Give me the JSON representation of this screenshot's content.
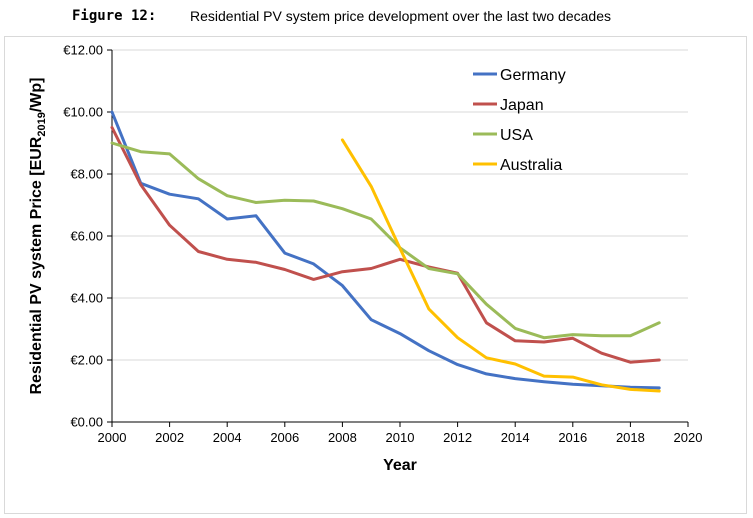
{
  "figure": {
    "label": "Figure 12:",
    "title": "Residential PV system price development over the last two decades"
  },
  "chart_data": {
    "type": "line",
    "title": "Residential PV system price development over the last two decades",
    "xlabel": "Year",
    "ylabel_main": "Residential PV system Price [EUR",
    "ylabel_sub": "2019",
    "ylabel_end": "/Wp]",
    "xlim": [
      2000,
      2020
    ],
    "ylim": [
      0,
      12
    ],
    "x_ticks": [
      2000,
      2002,
      2004,
      2006,
      2008,
      2010,
      2012,
      2014,
      2016,
      2018,
      2020
    ],
    "y_ticks": [
      0,
      2,
      4,
      6,
      8,
      10,
      12
    ],
    "y_tick_labels": [
      "€0.00",
      "€2.00",
      "€4.00",
      "€6.00",
      "€8.00",
      "€10.00",
      "€12.00"
    ],
    "grid": "horizontal",
    "legend_position": "top-right",
    "series": [
      {
        "name": "Germany",
        "color": "#4472C4",
        "x": [
          2000,
          2001,
          2002,
          2003,
          2004,
          2005,
          2006,
          2007,
          2008,
          2009,
          2010,
          2011,
          2012,
          2013,
          2014,
          2015,
          2016,
          2017,
          2018,
          2019
        ],
        "values": [
          10.0,
          7.7,
          7.35,
          7.2,
          6.55,
          6.65,
          5.45,
          5.1,
          4.4,
          3.3,
          2.85,
          2.3,
          1.85,
          1.55,
          1.4,
          1.3,
          1.22,
          1.17,
          1.12,
          1.1
        ]
      },
      {
        "name": "Japan",
        "color": "#C0504D",
        "x": [
          2000,
          2001,
          2002,
          2003,
          2004,
          2005,
          2006,
          2007,
          2008,
          2009,
          2010,
          2011,
          2012,
          2013,
          2014,
          2015,
          2016,
          2017,
          2018,
          2019
        ],
        "values": [
          9.5,
          7.65,
          6.35,
          5.5,
          5.25,
          5.15,
          4.92,
          4.6,
          4.85,
          4.95,
          5.25,
          5.0,
          4.8,
          3.2,
          2.62,
          2.58,
          2.7,
          2.22,
          1.93,
          2.0
        ]
      },
      {
        "name": "USA",
        "color": "#9BBB59",
        "x": [
          2000,
          2001,
          2002,
          2003,
          2004,
          2005,
          2006,
          2007,
          2008,
          2009,
          2010,
          2011,
          2012,
          2013,
          2014,
          2015,
          2016,
          2017,
          2018,
          2019
        ],
        "values": [
          9.0,
          8.72,
          8.65,
          7.85,
          7.3,
          7.08,
          7.15,
          7.13,
          6.88,
          6.55,
          5.62,
          4.95,
          4.78,
          3.8,
          3.02,
          2.72,
          2.82,
          2.78,
          2.78,
          3.2
        ]
      },
      {
        "name": "Australia",
        "color": "#FFC000",
        "x": [
          2008,
          2009,
          2010,
          2011,
          2012,
          2013,
          2014,
          2015,
          2016,
          2017,
          2018,
          2019
        ],
        "values": [
          9.1,
          7.6,
          5.6,
          3.65,
          2.72,
          2.07,
          1.87,
          1.48,
          1.45,
          1.2,
          1.05,
          1.0
        ]
      }
    ]
  }
}
